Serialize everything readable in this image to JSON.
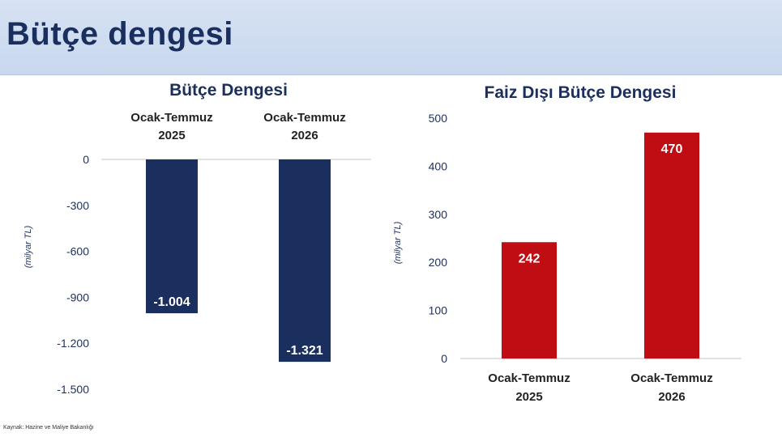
{
  "page": {
    "title": "Bütçe dengesi",
    "source": "Kaynak: Hazine ve Maliye Bakanlığı"
  },
  "chart_data": [
    {
      "type": "bar",
      "title": "Bütçe Dengesi",
      "ylabel": "(milyar TL)",
      "xlabel": "",
      "categories": [
        [
          "Ocak-Temmuz",
          "2025"
        ],
        [
          "Ocak-Temmuz",
          "2026"
        ]
      ],
      "values": [
        -1004,
        -1321
      ],
      "data_labels": [
        "-1.004",
        "-1.321"
      ],
      "yticks": [
        0,
        -300,
        -600,
        -900,
        -1200,
        -1500
      ],
      "ytick_labels": [
        "0",
        "-300",
        "-600",
        "-900",
        "-1.200",
        "-1.500"
      ],
      "ylim": [
        -1500,
        0
      ],
      "category_labels_position": "top",
      "color": "#1b2f5e"
    },
    {
      "type": "bar",
      "title": "Faiz Dışı Bütçe Dengesi",
      "ylabel": "(milyar TL)",
      "xlabel": "",
      "categories": [
        [
          "Ocak-Temmuz",
          "2025"
        ],
        [
          "Ocak-Temmuz",
          "2026"
        ]
      ],
      "values": [
        242,
        470
      ],
      "data_labels": [
        "242",
        "470"
      ],
      "yticks": [
        0,
        100,
        200,
        300,
        400,
        500
      ],
      "ytick_labels": [
        "0",
        "100",
        "200",
        "300",
        "400",
        "500"
      ],
      "ylim": [
        0,
        500
      ],
      "category_labels_position": "bottom",
      "color": "#c00d14"
    }
  ]
}
